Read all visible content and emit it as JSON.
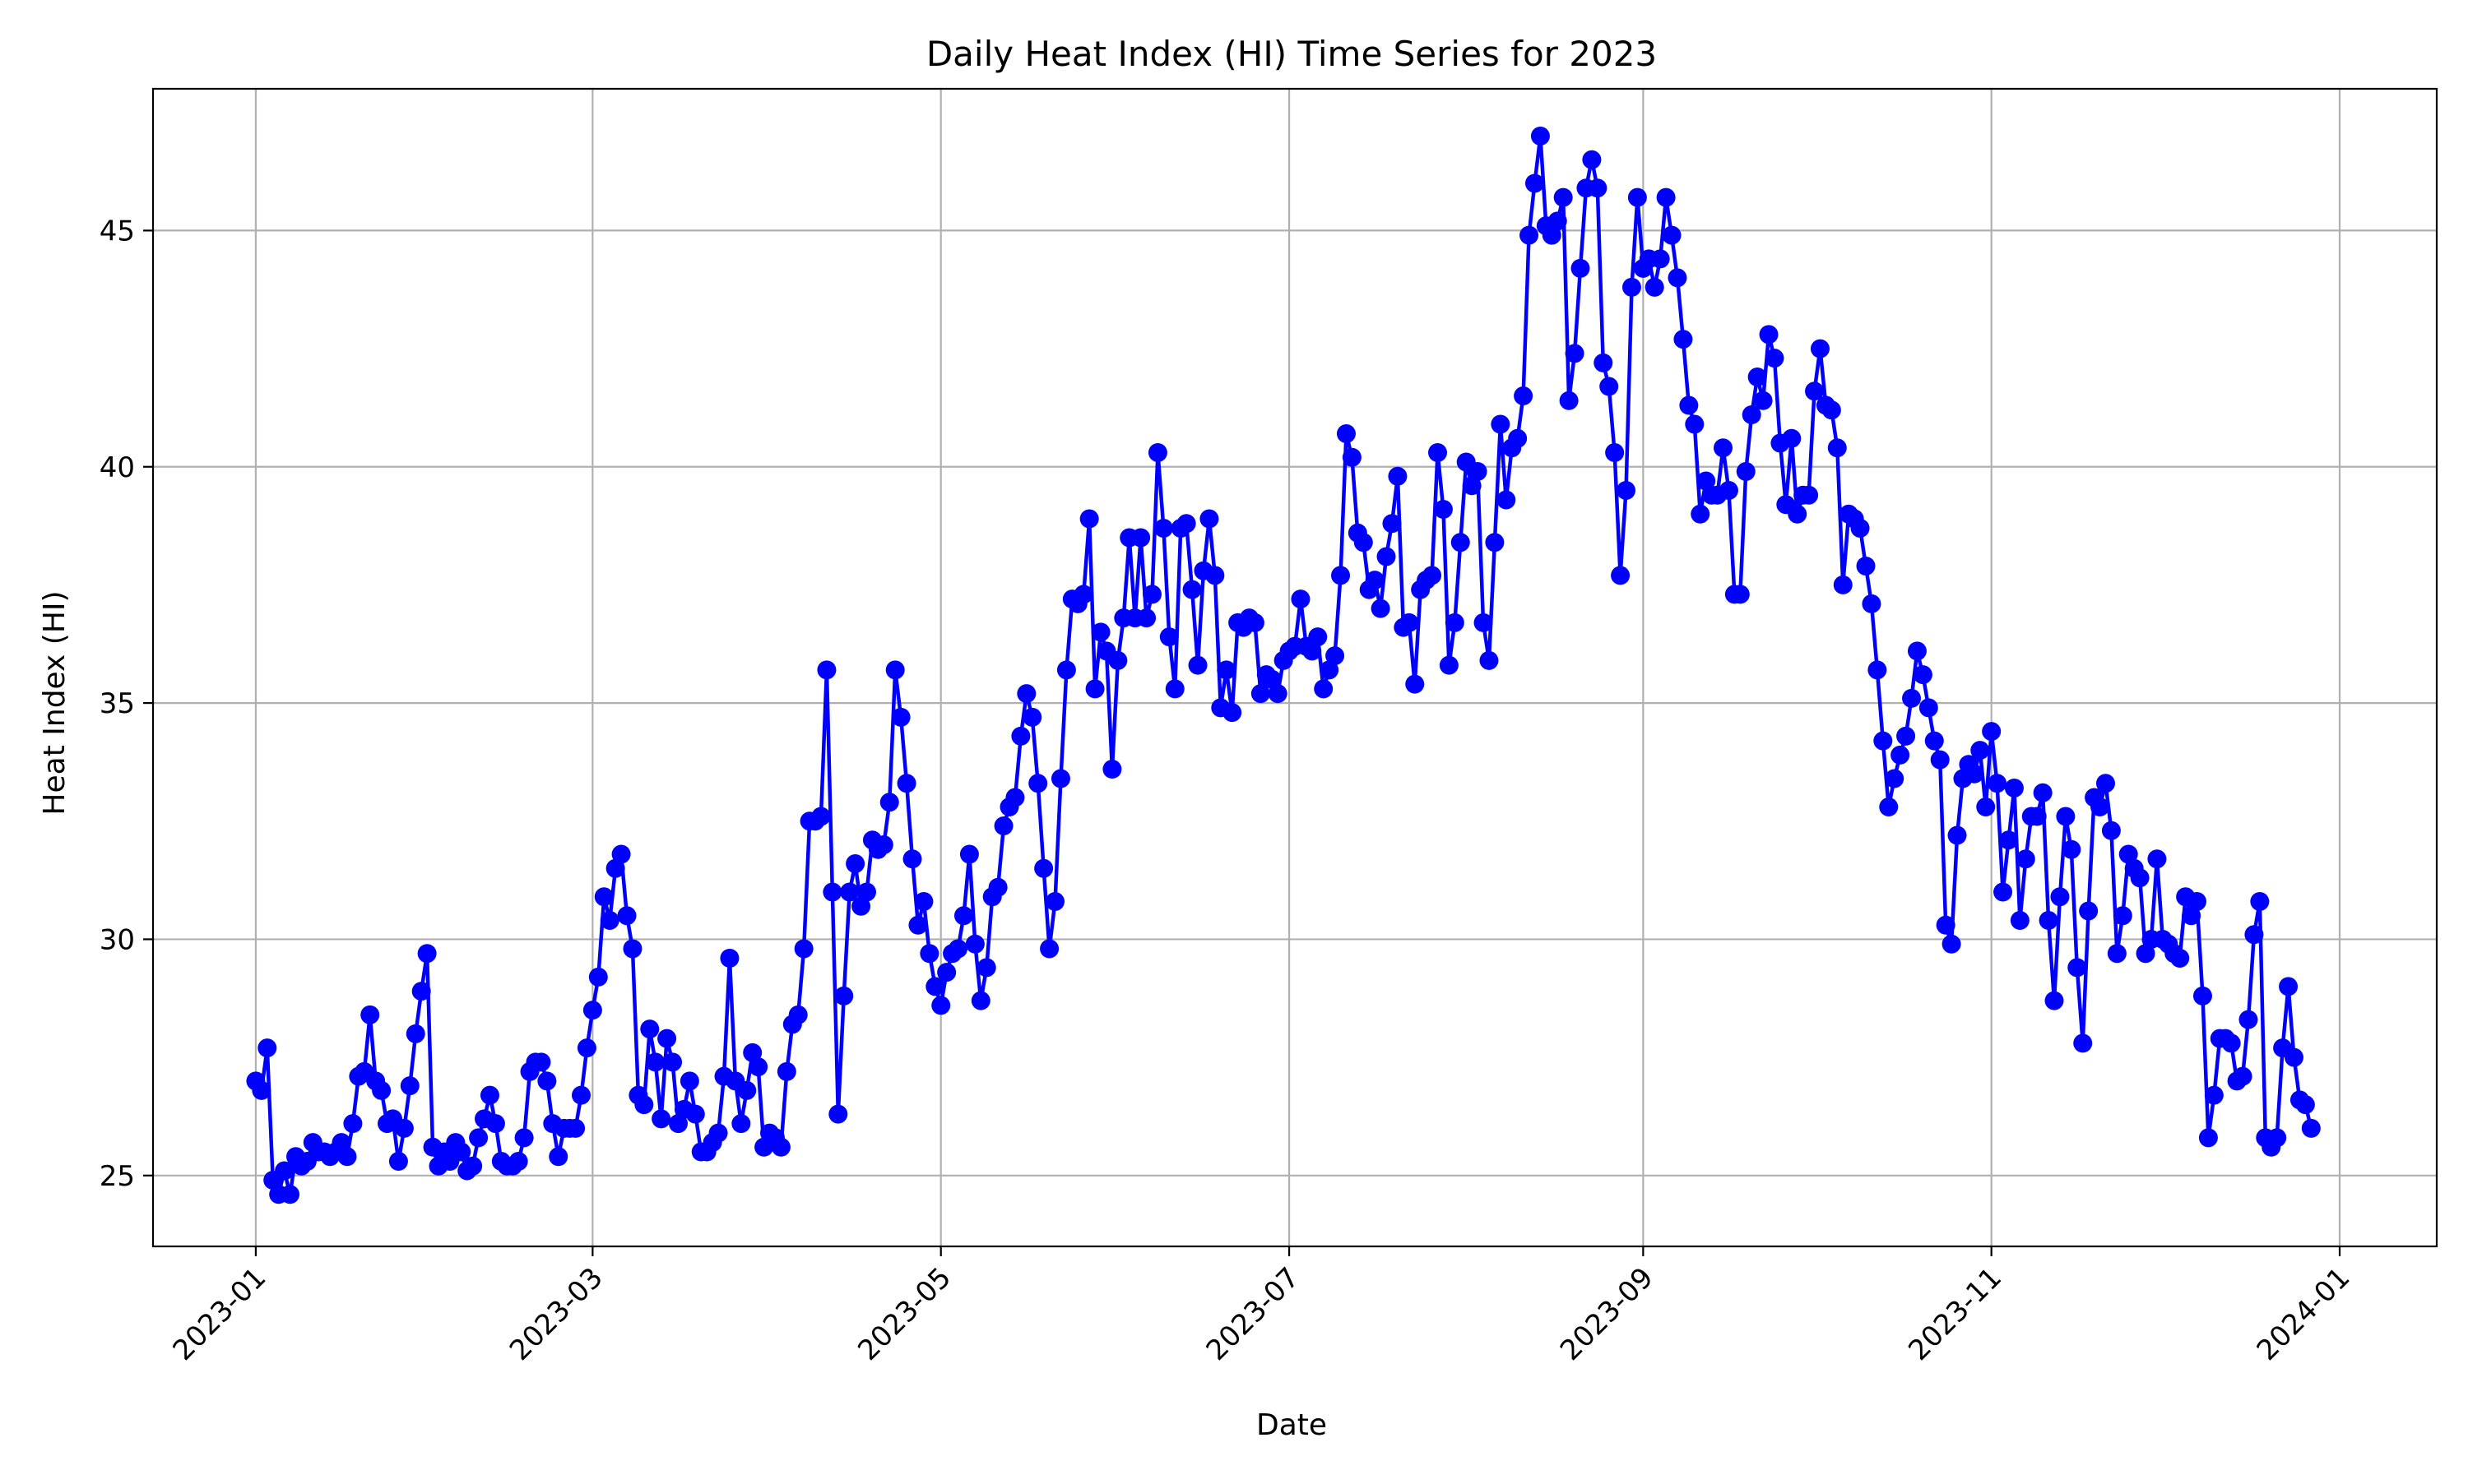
{
  "chart_data": {
    "type": "line",
    "title": "Daily Heat Index (HI) Time Series for 2023",
    "xlabel": "Date",
    "ylabel": "Heat Index (HI)",
    "x_axis_type": "date",
    "xlim": [
      "2022-12-14",
      "2024-01-18"
    ],
    "ylim": [
      23.5,
      48.0
    ],
    "x_ticks": [
      "2023-01",
      "2023-03",
      "2023-05",
      "2023-07",
      "2023-09",
      "2023-11",
      "2024-01"
    ],
    "y_ticks": [
      25,
      30,
      35,
      40,
      45
    ],
    "grid": true,
    "legend": "none",
    "marker": "circle",
    "line_color": "#0000ff",
    "series": [
      {
        "x_start": "2023-01-01",
        "x_step": "1 day",
        "values": [
          27.0,
          26.8,
          27.7,
          24.9,
          24.6,
          25.1,
          24.6,
          25.4,
          25.2,
          25.3,
          25.7,
          25.5,
          25.5,
          25.4,
          25.5,
          25.7,
          25.4,
          26.1,
          27.1,
          27.2,
          28.4,
          27.0,
          26.8,
          26.1,
          26.2,
          25.3,
          26.0,
          26.9,
          28.0,
          28.9,
          29.7,
          25.6,
          25.2,
          25.5,
          25.3,
          25.7,
          25.5,
          25.1,
          25.2,
          25.8,
          26.2,
          26.7,
          26.1,
          25.3,
          25.2,
          25.2,
          25.3,
          25.8,
          27.2,
          27.4,
          27.4,
          27.0,
          26.1,
          25.4,
          26.0,
          26.0,
          26.0,
          26.7,
          27.7,
          28.5,
          29.2,
          30.9,
          30.4,
          31.5,
          31.8,
          30.5,
          29.8,
          26.7,
          26.5,
          28.1,
          27.4,
          26.2,
          27.9,
          27.4,
          26.1,
          26.4,
          27.0,
          26.3,
          25.5,
          25.5,
          25.7,
          25.9,
          27.1,
          29.6,
          27.0,
          26.1,
          26.8,
          27.6,
          27.3,
          25.6,
          25.9,
          25.8,
          25.6,
          27.2,
          28.2,
          28.4,
          29.8,
          32.5,
          32.5,
          32.6,
          35.7,
          31.0,
          26.3,
          28.8,
          31.0,
          31.6,
          30.7,
          31.0,
          32.1,
          31.9,
          32.0,
          32.9,
          35.7,
          34.7,
          33.3,
          31.7,
          30.3,
          30.8,
          29.7,
          29.0,
          28.6,
          29.3,
          29.7,
          29.8,
          30.5,
          31.8,
          29.9,
          28.7,
          29.4,
          30.9,
          31.1,
          32.4,
          32.8,
          33.0,
          34.3,
          35.2,
          34.7,
          33.3,
          31.5,
          29.8,
          30.8,
          33.4,
          35.7,
          37.2,
          37.1,
          37.3,
          38.9,
          35.3,
          36.5,
          36.1,
          33.6,
          35.9,
          36.8,
          38.5,
          36.8,
          38.5,
          36.8,
          37.3,
          40.3,
          38.7,
          36.4,
          35.3,
          38.7,
          38.8,
          37.4,
          35.8,
          37.8,
          38.9,
          37.7,
          34.9,
          35.7,
          34.8,
          36.7,
          36.6,
          36.8,
          36.7,
          35.2,
          35.6,
          35.5,
          35.2,
          35.9,
          36.1,
          36.2,
          37.2,
          36.2,
          36.1,
          36.4,
          35.3,
          35.7,
          36.0,
          37.7,
          40.7,
          40.2,
          38.6,
          38.4,
          37.4,
          37.6,
          37.0,
          38.1,
          38.8,
          39.8,
          36.6,
          36.7,
          35.4,
          37.4,
          37.6,
          37.7,
          40.3,
          39.1,
          35.8,
          36.7,
          38.4,
          40.1,
          39.6,
          39.9,
          36.7,
          35.9,
          38.4,
          40.9,
          39.3,
          40.4,
          40.6,
          41.5,
          44.9,
          46.0,
          47.0,
          45.1,
          44.9,
          45.2,
          45.7,
          41.4,
          42.4,
          44.2,
          45.9,
          46.5,
          45.9,
          42.2,
          41.7,
          40.3,
          37.7,
          39.5,
          43.8,
          45.7,
          44.2,
          44.4,
          43.8,
          44.4,
          45.7,
          44.9,
          44.0,
          42.7,
          41.3,
          40.9,
          39.0,
          39.7,
          39.4,
          39.4,
          40.4,
          39.5,
          37.3,
          37.3,
          39.9,
          41.1,
          41.9,
          41.4,
          42.8,
          42.3,
          40.5,
          39.2,
          40.6,
          39.0,
          39.4,
          39.4,
          41.6,
          42.5,
          41.3,
          41.2,
          40.4,
          37.5,
          39.0,
          38.9,
          38.7,
          37.9,
          37.1,
          35.7,
          34.2,
          32.8,
          33.4,
          33.9,
          34.3,
          35.1,
          36.1,
          35.6,
          34.9,
          34.2,
          33.8,
          30.3,
          29.9,
          32.2,
          33.4,
          33.7,
          33.5,
          34.0,
          32.8,
          34.4,
          33.3,
          31.0,
          32.1,
          33.2,
          30.4,
          31.7,
          32.6,
          32.6,
          33.1,
          30.4,
          28.7,
          30.9,
          32.6,
          31.9,
          29.4,
          27.8,
          30.6,
          33.0,
          32.8,
          33.3,
          32.3,
          29.7,
          30.5,
          31.8,
          31.5,
          31.3,
          29.7,
          30.0,
          31.7,
          30.0,
          29.9,
          29.7,
          29.6,
          30.9,
          30.5,
          30.8,
          28.8,
          25.8,
          26.7,
          27.9,
          27.9,
          27.8,
          27.0,
          27.1,
          28.3,
          30.1,
          30.8,
          25.8,
          25.6,
          25.8,
          27.7,
          29.0,
          27.5,
          26.6,
          26.5,
          26.0
        ]
      }
    ]
  }
}
